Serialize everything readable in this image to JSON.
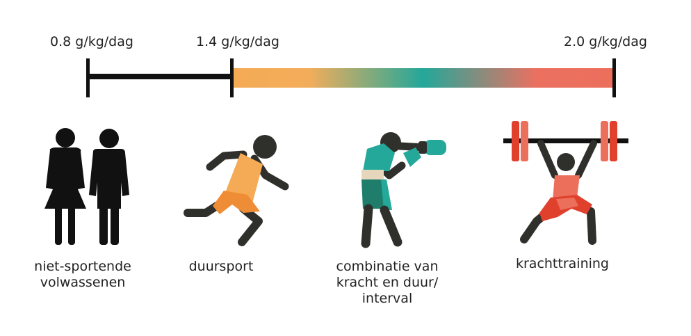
{
  "scale": {
    "labels": [
      "0.8 g/kg/dag",
      "1.4 g/kg/dag",
      "2.0 g/kg/dag"
    ]
  },
  "colors": {
    "black": "#111111",
    "dark": "#2f302b",
    "orange": "#f5aa55",
    "orange_dark": "#ef8c36",
    "teal": "#23a89a",
    "teal_dark": "#1e7d6b",
    "beige": "#e6d6bb",
    "red": "#ec6f5c",
    "red_dark": "#e0412d"
  },
  "groups": [
    {
      "icon": "people-icon",
      "caption": "niet-sportende\nvolwassenen"
    },
    {
      "icon": "runner-icon",
      "caption": "duursport"
    },
    {
      "icon": "boxer-icon",
      "caption": "combinatie van\nkracht en duur/\ninterval"
    },
    {
      "icon": "weightlifter-icon",
      "caption": "krachttraining"
    }
  ]
}
